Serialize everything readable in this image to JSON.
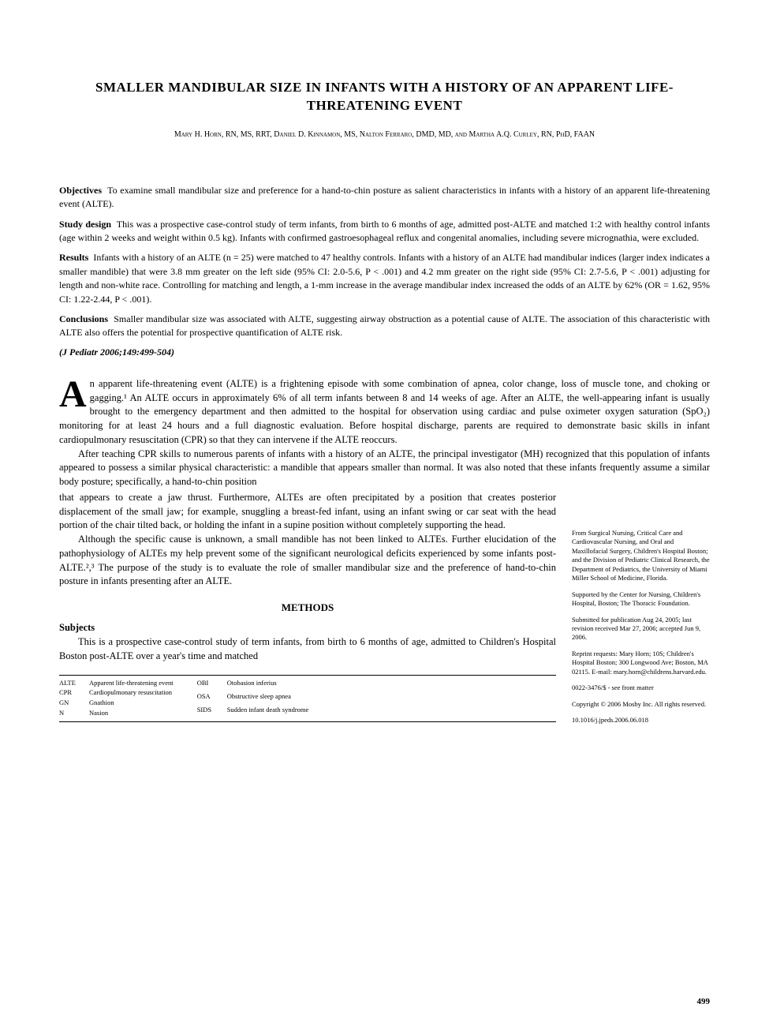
{
  "title": "SMALLER MANDIBULAR SIZE IN INFANTS WITH A HISTORY OF AN APPARENT LIFE-THREATENING EVENT",
  "authors": "Mary H. Horn, RN, MS, RRT, Daniel D. Kinnamon, MS, Nalton Ferraro, DMD, MD, and Martha A.Q. Curley, RN, PhD, FAAN",
  "abstract": {
    "objectives": {
      "label": "Objectives",
      "text": "To examine small mandibular size and preference for a hand-to-chin posture as salient characteristics in infants with a history of an apparent life-threatening event (ALTE)."
    },
    "study_design": {
      "label": "Study design",
      "text": "This was a prospective case-control study of term infants, from birth to 6 months of age, admitted post-ALTE and matched 1:2 with healthy control infants (age within 2 weeks and weight within 0.5 kg). Infants with confirmed gastroesophageal reflux and congenital anomalies, including severe micrognathia, were excluded."
    },
    "results": {
      "label": "Results",
      "text": "Infants with a history of an ALTE (n = 25) were matched to 47 healthy controls. Infants with a history of an ALTE had mandibular indices (larger index indicates a smaller mandible) that were 3.8 mm greater on the left side (95% CI: 2.0-5.6, P < .001) and 4.2 mm greater on the right side (95% CI: 2.7-5.6, P < .001) adjusting for length and non-white race. Controlling for matching and length, a 1-mm increase in the average mandibular index increased the odds of an ALTE by 62% (OR = 1.62, 95% CI: 1.22-2.44, P < .001)."
    },
    "conclusions": {
      "label": "Conclusions",
      "text": "Smaller mandibular size was associated with ALTE, suggesting airway obstruction as a potential cause of ALTE. The association of this characteristic with ALTE also offers the potential for prospective quantification of ALTE risk."
    }
  },
  "citation": "(J Pediatr 2006;149:499-504)",
  "body": {
    "dropcap": "A",
    "p1": "n apparent life-threatening event (ALTE) is a frightening episode with some combination of apnea, color change, loss of muscle tone, and choking or gagging.¹ An ALTE occurs in approximately 6% of all term infants between 8 and 14 weeks of age. After an ALTE, the well-appearing infant is usually brought to the emergency department and then admitted to the hospital for observation using cardiac and pulse oximeter oxygen saturation (SpO₂) monitoring for at least 24 hours and a full diagnostic evaluation. Before hospital discharge, parents are required to demonstrate basic skills in infant cardiopulmonary resuscitation (CPR) so that they can intervene if the ALTE reoccurs.",
    "p2": "After teaching CPR skills to numerous parents of infants with a history of an ALTE, the principal investigator (MH) recognized that this population of infants appeared to possess a similar physical characteristic: a mandible that appears smaller than normal. It was also noted that these infants frequently assume a similar body posture; specifically, a hand-to-chin position",
    "p2b": "that appears to create a jaw thrust. Furthermore, ALTEs are often precipitated by a position that creates posterior displacement of the small jaw; for example, snuggling a breast-fed infant, using an infant swing or car seat with the head portion of the chair tilted back, or holding the infant in a supine position without completely supporting the head.",
    "p3": "Although the specific cause is unknown, a small mandible has not been linked to ALTEs. Further elucidation of the pathophysiology of ALTEs my help prevent some of the significant neurological deficits experienced by some infants post-ALTE.²,³ The purpose of the study is to evaluate the role of smaller mandibular size and the preference of hand-to-chin posture in infants presenting after an ALTE.",
    "methods_head": "METHODS",
    "subjects_head": "Subjects",
    "p4": "This is a prospective case-control study of term infants, from birth to 6 months of age, admitted to Children's Hospital Boston post-ALTE over a year's time and matched"
  },
  "abbrev": {
    "col1": [
      [
        "ALTE",
        "Apparent life-threatening event"
      ],
      [
        "CPR",
        "Cardiopulmonary resuscitation"
      ],
      [
        "GN",
        "Gnathion"
      ],
      [
        "N",
        "Nasion"
      ]
    ],
    "col2": [
      [
        "OBI",
        "Otobasion inferius"
      ],
      [
        "OSA",
        "Obstructive sleep apnea"
      ],
      [
        "SIDS",
        "Sudden infant death syndrome"
      ]
    ]
  },
  "sidebar": {
    "affil": "From Surgical Nursing, Critical Care and Cardiovascular Nursing, and Oral and Maxillofacial Surgery, Children's Hospital Boston; and the Division of Pediatric Clinical Research, the Department of Pediatrics, the University of Miami Miller School of Medicine, Florida.",
    "support": "Supported by the Center for Nursing, Children's Hospital, Boston; The Thoracic Foundation.",
    "dates": "Submitted for publication Aug 24, 2005; last revision received Mar 27, 2006; accepted Jun 9, 2006.",
    "reprint": "Reprint requests: Mary Horn; 10S; Children's Hospital Boston; 300 Longwood Ave; Boston, MA 02115. E-mail: mary.horn@childrens.harvard.edu.",
    "issn": "0022-3476/$ - see front matter",
    "copyright": "Copyright © 2006 Mosby Inc. All rights reserved.",
    "doi": "10.1016/j.jpeds.2006.06.018"
  },
  "page_number": "499",
  "colors": {
    "text": "#000000",
    "background": "#ffffff",
    "rule": "#000000"
  },
  "typography": {
    "title_size_pt": 17,
    "body_size_pt": 12.5,
    "abstract_size_pt": 12,
    "sidebar_size_pt": 8.5,
    "abbrev_size_pt": 8.5,
    "font_family": "Georgia, Times New Roman, serif"
  }
}
